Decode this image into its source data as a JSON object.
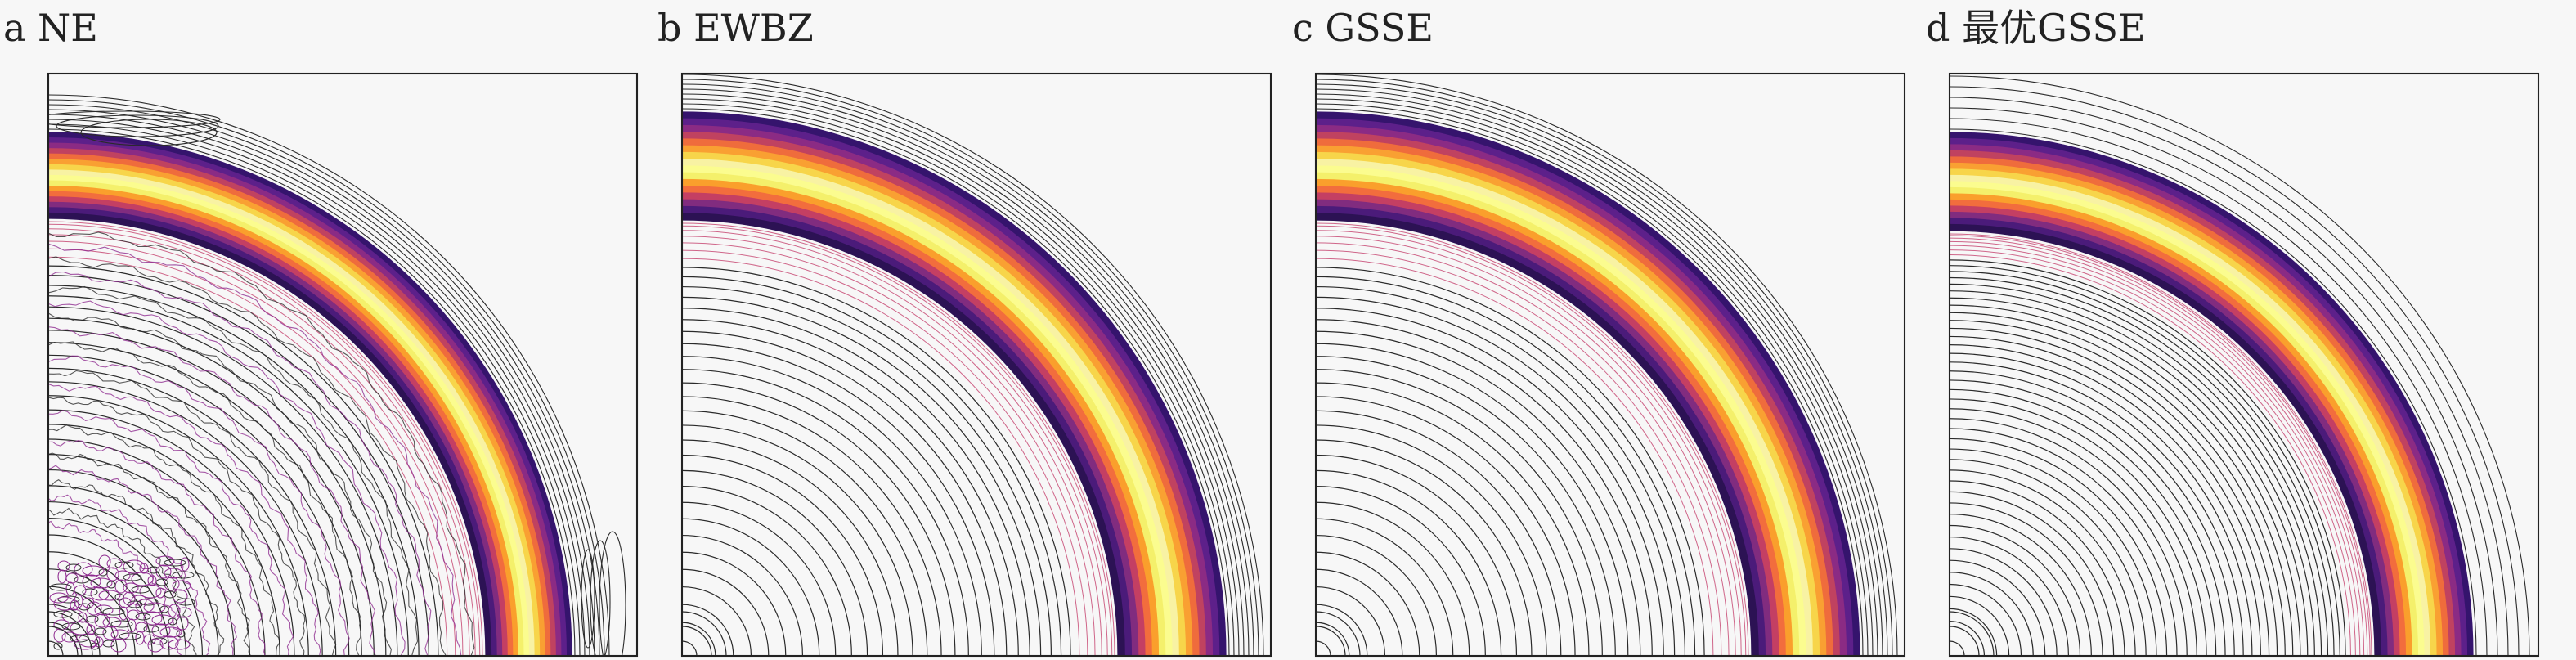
{
  "panels": [
    {
      "label": "a NE",
      "style": "noisy"
    },
    {
      "label": "b EWBZ",
      "style": "clean"
    },
    {
      "label": "c GSSE",
      "style": "clean"
    },
    {
      "label": "d 最优GSSE",
      "style": "optimal"
    }
  ],
  "colors": {
    "background": "#f7f7f7",
    "axes": "#222222",
    "contour_dark": "#2a2a2a",
    "contour_purple": "#8e2a8f",
    "contour_pink": "#c84b76",
    "band": [
      "#35146d",
      "#5d208a",
      "#8b2b84",
      "#c04260",
      "#ef6c3c",
      "#f9a032",
      "#f7d54a",
      "#f8f2a3",
      "#fbfc8f",
      "#f4f06b",
      "#fa9f2c",
      "#f26d3d",
      "#c43f63",
      "#812c7f",
      "#4b1b7a",
      "#2c1254"
    ]
  }
}
